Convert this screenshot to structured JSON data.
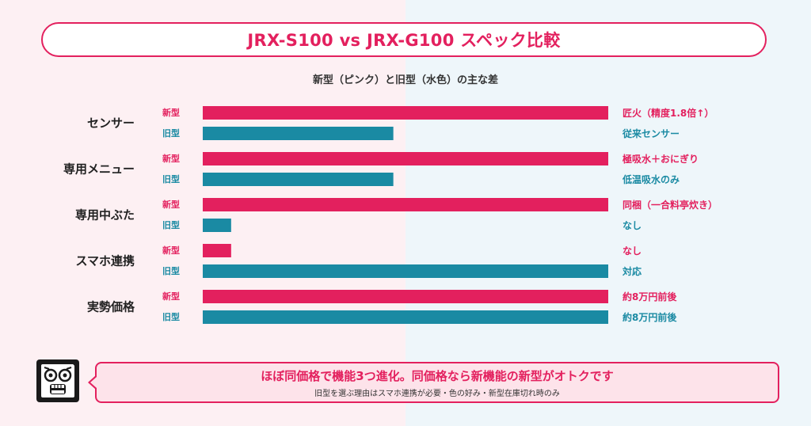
{
  "title": "JRX-S100 vs JRX-G100 スペック比較",
  "subtitle": "新型（ピンク）と旧型（水色）の主な差",
  "colors": {
    "new": "#e3205e",
    "old": "#1a8aa3",
    "bg_left": "#fdf0f3",
    "bg_right": "#eef6fa",
    "callout_bg": "#fde3ea"
  },
  "chart_data": {
    "type": "bar",
    "orientation": "horizontal",
    "title": "JRX-S100 vs JRX-G100 スペック比較",
    "subtitle": "新型（ピンク）と旧型（水色）の主な差",
    "series_tags": [
      "新型",
      "旧型"
    ],
    "xlim": [
      0,
      100
    ],
    "grid": false,
    "categories": [
      {
        "label": "センサー",
        "new": {
          "value": 100,
          "text": "匠火（精度1.8倍↑）"
        },
        "old": {
          "value": 47,
          "text": "従来センサー"
        }
      },
      {
        "label": "専用メニュー",
        "new": {
          "value": 100,
          "text": "極吸水＋おにぎり"
        },
        "old": {
          "value": 47,
          "text": "低温吸水のみ"
        }
      },
      {
        "label": "専用中ぶた",
        "new": {
          "value": 100,
          "text": "同梱（一合料亭炊き）"
        },
        "old": {
          "value": 7,
          "text": "なし"
        }
      },
      {
        "label": "スマホ連携",
        "new": {
          "value": 7,
          "text": "なし"
        },
        "old": {
          "value": 100,
          "text": "対応"
        }
      },
      {
        "label": "実勢価格",
        "new": {
          "value": 100,
          "text": "約8万円前後"
        },
        "old": {
          "value": 100,
          "text": "約8万円前後"
        }
      }
    ]
  },
  "callout": {
    "main": "ほぼ同価格で機能3つ進化。同価格なら新機能の新型がオトクです",
    "sub": "旧型を選ぶ理由はスマホ連携が必要・色の好み・新型在庫切れ時のみ",
    "mascot_icon": "shocked-face-icon"
  }
}
